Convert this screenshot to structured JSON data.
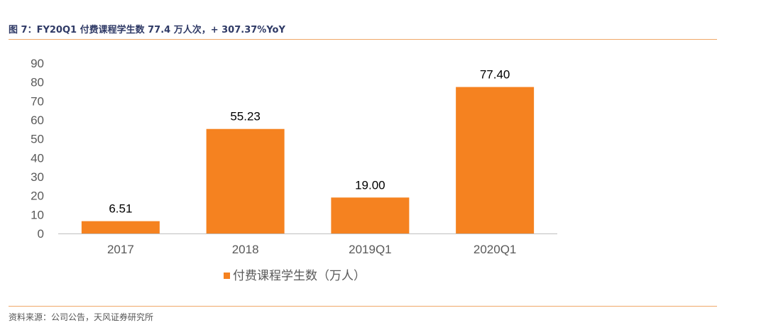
{
  "figure": {
    "title": "图 7：FY20Q1 付费课程学生数 77.4 万人次，+ 307.37%YoY",
    "source": "资料来源：公司公告，天风证券研究所"
  },
  "colors": {
    "bar": "#f58220",
    "title": "#2f3a66",
    "rule": "#f0a868",
    "axis_text": "#595959",
    "label_text": "#000000"
  },
  "chart_data": {
    "type": "bar",
    "title": "",
    "xlabel": "",
    "ylabel": "",
    "categories": [
      "2017",
      "2018",
      "2019Q1",
      "2020Q1"
    ],
    "series": [
      {
        "name": "付费课程学生数（万人）",
        "values": [
          6.51,
          55.23,
          19.0,
          77.4
        ],
        "labels": [
          "6.51",
          "55.23",
          "19.00",
          "77.40"
        ]
      }
    ],
    "ylim": [
      0,
      90
    ],
    "yticks": [
      "0",
      "10",
      "20",
      "30",
      "40",
      "50",
      "60",
      "70",
      "80",
      "90"
    ],
    "grid": false,
    "legend_position": "bottom"
  }
}
